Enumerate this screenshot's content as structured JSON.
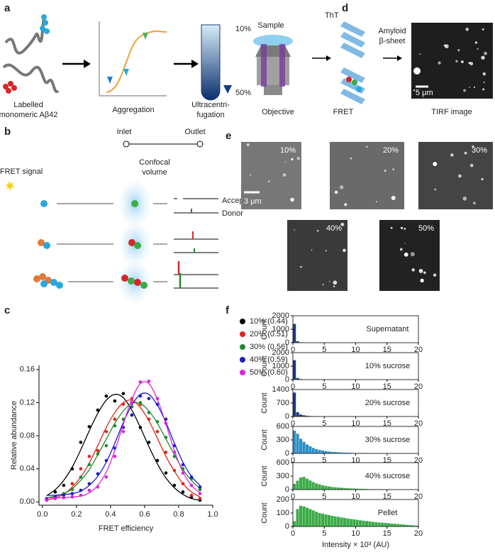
{
  "panel_labels": [
    "a",
    "b",
    "c",
    "d",
    "e",
    "f"
  ],
  "panel_a": {
    "monomer_label": [
      "Labelled",
      "monomeric Aβ42"
    ],
    "aggregation_label": "Aggregation",
    "centrifugation_label": [
      "Ultracentri-",
      "fugation"
    ],
    "gradient_top": "10%",
    "gradient_bottom": "50%"
  },
  "panel_b": {
    "inlet": "Inlet",
    "outlet": "Outlet",
    "fret_signal": "FRET signal",
    "confocal": [
      "Confocal",
      "volume"
    ],
    "acceptor": "Acceptor",
    "donor": "Donor"
  },
  "panel_d": {
    "sample": "Sample",
    "tht": "ThT",
    "amyloid": [
      "Amyloid",
      "β-sheet"
    ],
    "objective": "Objective",
    "fret": "FRET",
    "tirf": "TIRF image",
    "scale": "5 μm"
  },
  "panel_e": {
    "images": [
      "10%",
      "20%",
      "30%",
      "40%",
      "50%"
    ],
    "scale": "3 μm"
  },
  "chart_data": [
    {
      "type": "scatter",
      "xlabel": "FRET efficiency",
      "ylabel": "Relative abundance",
      "legend": "right",
      "xlim": [
        -0.02,
        1.0
      ],
      "ylim": [
        -0.004,
        0.165
      ],
      "xticks": [
        {
          "value": 0,
          "label": "0.0"
        },
        0.2,
        0.4,
        0.6,
        0.8,
        {
          "value": 1,
          "label": "1.0"
        }
      ],
      "yticks": [
        {
          "value": 0,
          "label": "0.00"
        },
        0.04,
        0.08,
        0.12,
        0.16
      ],
      "x": [
        0.025,
        0.075,
        0.125,
        0.175,
        0.225,
        0.275,
        0.325,
        0.375,
        0.425,
        0.475,
        0.525,
        0.575,
        0.625,
        0.675,
        0.725,
        0.775,
        0.825,
        0.875,
        0.925
      ],
      "series": [
        {
          "name": "10% (0.44)",
          "color": "#000000",
          "values": [
            0.004,
            0.012,
            0.02,
            0.04,
            0.072,
            0.091,
            0.111,
            0.128,
            0.122,
            0.131,
            0.105,
            0.09,
            0.072,
            0.05,
            0.035,
            0.02,
            0.012,
            0.006,
            0.002
          ],
          "fit": [
            0.0076,
            0.0147,
            0.026,
            0.042,
            0.063,
            0.086,
            0.107,
            0.123,
            0.13,
            0.126,
            0.111,
            0.09,
            0.067,
            0.046,
            0.029,
            0.017,
            0.009,
            0.004,
            0.002
          ]
        },
        {
          "name": "20% (0.51)",
          "color": "#e2231a",
          "values": [
            0.002,
            0.004,
            0.009,
            0.022,
            0.04,
            0.055,
            0.062,
            0.085,
            0.1,
            0.118,
            0.125,
            0.118,
            0.1,
            0.085,
            0.06,
            0.038,
            0.022,
            0.008,
            0.004
          ],
          "fit": [
            0.002,
            0.005,
            0.009,
            0.018,
            0.03,
            0.047,
            0.068,
            0.09,
            0.108,
            0.12,
            0.123,
            0.114,
            0.098,
            0.077,
            0.055,
            0.037,
            0.022,
            0.012,
            0.006
          ]
        },
        {
          "name": "30% (0.56)",
          "color": "#1f8a2b",
          "values": [
            0.003,
            0.004,
            0.01,
            0.015,
            0.03,
            0.045,
            0.058,
            0.068,
            0.092,
            0.1,
            0.115,
            0.12,
            0.108,
            0.097,
            0.078,
            0.055,
            0.04,
            0.028,
            0.015
          ],
          "fit": [
            0.005,
            0.007,
            0.01,
            0.016,
            0.026,
            0.039,
            0.057,
            0.076,
            0.095,
            0.11,
            0.119,
            0.119,
            0.11,
            0.095,
            0.076,
            0.057,
            0.039,
            0.026,
            0.016
          ]
        },
        {
          "name": "40% (0.59)",
          "color": "#1c1cc8",
          "values": [
            0.004,
            0.006,
            0.008,
            0.01,
            0.014,
            0.022,
            0.034,
            0.05,
            0.065,
            0.09,
            0.105,
            0.128,
            0.125,
            0.118,
            0.1,
            0.068,
            0.045,
            0.03,
            0.018
          ],
          "fit": [
            0.008,
            0.008,
            0.009,
            0.01,
            0.013,
            0.02,
            0.031,
            0.048,
            0.071,
            0.096,
            0.117,
            0.13,
            0.13,
            0.117,
            0.096,
            0.071,
            0.048,
            0.031,
            0.02
          ]
        },
        {
          "name": "50% (0.60)",
          "color": "#e021e0",
          "values": [
            0.002,
            0.004,
            0.005,
            0.006,
            0.008,
            0.014,
            0.018,
            0.03,
            0.055,
            0.085,
            0.12,
            0.145,
            0.146,
            0.125,
            0.095,
            0.06,
            0.035,
            0.02,
            0.01
          ],
          "fit": [
            0.005,
            0.005,
            0.005,
            0.006,
            0.007,
            0.011,
            0.02,
            0.036,
            0.062,
            0.094,
            0.124,
            0.143,
            0.143,
            0.124,
            0.094,
            0.062,
            0.036,
            0.02,
            0.011
          ]
        }
      ]
    },
    {
      "type": "histogram",
      "label": "Supernatant",
      "ylabel": "Count",
      "color": "#1b3a7c",
      "bins": [
        0,
        0.5,
        1,
        1.5,
        2,
        2.5,
        3,
        3.5,
        4,
        4.5,
        5,
        5.5,
        6,
        6.5,
        7,
        7.5,
        8,
        8.5,
        9,
        9.5,
        10,
        10.5,
        11,
        11.5,
        12,
        12.5,
        13,
        13.5,
        14,
        14.5,
        15,
        15.5,
        16,
        16.5,
        17,
        17.5,
        18,
        18.5,
        19,
        19.5,
        20
      ],
      "values": [
        1400,
        120,
        40,
        20,
        10,
        8,
        5,
        4,
        3,
        2,
        2,
        1,
        1,
        1,
        0,
        0,
        0,
        0,
        0,
        0,
        0,
        0,
        0,
        0,
        0,
        0,
        0,
        0,
        0,
        0,
        0,
        0,
        0,
        0,
        0,
        0,
        0,
        0,
        0,
        0
      ],
      "xlim": [
        0,
        20
      ],
      "ylim": [
        0,
        2000
      ],
      "xticks": [
        0,
        5,
        10,
        15,
        20
      ],
      "yticks": [
        0,
        1000,
        2000
      ]
    },
    {
      "type": "histogram",
      "label": "10% sucrose",
      "ylabel": "Count",
      "color": "#1b3a7c",
      "bins": [
        0,
        0.5,
        1,
        1.5,
        2,
        2.5,
        3,
        3.5,
        4,
        4.5,
        5,
        5.5,
        6,
        6.5,
        7,
        7.5,
        8,
        8.5,
        9,
        9.5,
        10,
        10.5,
        11,
        11.5,
        12,
        12.5,
        13,
        13.5,
        14,
        14.5,
        15,
        15.5,
        16,
        16.5,
        17,
        17.5,
        18,
        18.5,
        19,
        19.5,
        20
      ],
      "values": [
        1450,
        130,
        50,
        25,
        15,
        10,
        6,
        4,
        3,
        2,
        1,
        1,
        1,
        0,
        0,
        0,
        0,
        0,
        0,
        0,
        0,
        0,
        0,
        0,
        0,
        0,
        0,
        0,
        0,
        0,
        0,
        0,
        0,
        0,
        0,
        0,
        0,
        0,
        0,
        0
      ],
      "xlim": [
        0,
        20
      ],
      "ylim": [
        0,
        2000
      ],
      "xticks": [
        0,
        5,
        10,
        15,
        20
      ],
      "yticks": [
        0,
        1000,
        2000
      ]
    },
    {
      "type": "histogram",
      "label": "20% sucrose",
      "ylabel": "Count",
      "color": "#1b3a7c",
      "bins": [
        0,
        0.5,
        1,
        1.5,
        2,
        2.5,
        3,
        3.5,
        4,
        4.5,
        5,
        5.5,
        6,
        6.5,
        7,
        7.5,
        8,
        8.5,
        9,
        9.5,
        10,
        10.5,
        11,
        11.5,
        12,
        12.5,
        13,
        13.5,
        14,
        14.5,
        15,
        15.5,
        16,
        16.5,
        17,
        17.5,
        18,
        18.5,
        19,
        19.5,
        20
      ],
      "values": [
        1250,
        230,
        110,
        70,
        45,
        30,
        22,
        16,
        12,
        10,
        8,
        6,
        5,
        4,
        3,
        3,
        2,
        2,
        1,
        1,
        1,
        1,
        0,
        0,
        0,
        0,
        0,
        0,
        0,
        0,
        0,
        0,
        0,
        0,
        0,
        0,
        0,
        0,
        0,
        0
      ],
      "xlim": [
        0,
        20
      ],
      "ylim": [
        0,
        1400
      ],
      "xticks": [
        0,
        5,
        10,
        15,
        20
      ],
      "yticks": [
        0,
        700,
        1400
      ]
    },
    {
      "type": "histogram",
      "label": "30% sucrose",
      "ylabel": "Count",
      "color": "#2b8fc9",
      "bins": [
        0,
        0.5,
        1,
        1.5,
        2,
        2.5,
        3,
        3.5,
        4,
        4.5,
        5,
        5.5,
        6,
        6.5,
        7,
        7.5,
        8,
        8.5,
        9,
        9.5,
        10,
        10.5,
        11,
        11.5,
        12,
        12.5,
        13,
        13.5,
        14,
        14.5,
        15,
        15.5,
        16,
        16.5,
        17,
        17.5,
        18,
        18.5,
        19,
        19.5,
        20
      ],
      "values": [
        510,
        440,
        330,
        260,
        200,
        160,
        125,
        100,
        80,
        65,
        55,
        45,
        38,
        32,
        27,
        23,
        20,
        17,
        15,
        13,
        11,
        10,
        9,
        8,
        7,
        6,
        5,
        5,
        4,
        4,
        3,
        3,
        3,
        2,
        2,
        2,
        2,
        1,
        1,
        1
      ],
      "xlim": [
        0,
        20
      ],
      "ylim": [
        0,
        600
      ],
      "xticks": [
        0,
        5,
        10,
        15,
        20
      ],
      "yticks": [
        0,
        300,
        600
      ]
    },
    {
      "type": "histogram",
      "label": "40% sucrose",
      "ylabel": "Count",
      "color": "#3aab47",
      "bins": [
        0,
        0.5,
        1,
        1.5,
        2,
        2.5,
        3,
        3.5,
        4,
        4.5,
        5,
        5.5,
        6,
        6.5,
        7,
        7.5,
        8,
        8.5,
        9,
        9.5,
        10,
        10.5,
        11,
        11.5,
        12,
        12.5,
        13,
        13.5,
        14,
        14.5,
        15,
        15.5,
        16,
        16.5,
        17,
        17.5,
        18,
        18.5,
        19,
        19.5,
        20
      ],
      "values": [
        130,
        200,
        270,
        285,
        245,
        205,
        170,
        140,
        120,
        100,
        85,
        72,
        62,
        55,
        48,
        42,
        37,
        33,
        29,
        26,
        23,
        20,
        18,
        16,
        14,
        12,
        11,
        10,
        9,
        8,
        7,
        6,
        5,
        5,
        4,
        4,
        3,
        3,
        2,
        2
      ],
      "xlim": [
        0,
        20
      ],
      "ylim": [
        0,
        600
      ],
      "xticks": [
        0,
        5,
        10,
        15,
        20
      ],
      "yticks": [
        0,
        300,
        600
      ]
    },
    {
      "type": "histogram",
      "label": "Pellet",
      "ylabel": "Count",
      "xlabel": "Intensity × 10³ (AU)",
      "color": "#3aab47",
      "bins": [
        0,
        0.5,
        1,
        1.5,
        2,
        2.5,
        3,
        3.5,
        4,
        4.5,
        5,
        5.5,
        6,
        6.5,
        7,
        7.5,
        8,
        8.5,
        9,
        9.5,
        10,
        10.5,
        11,
        11.5,
        12,
        12.5,
        13,
        13.5,
        14,
        14.5,
        15,
        15.5,
        16,
        16.5,
        17,
        17.5,
        18,
        18.5,
        19,
        19.5,
        20
      ],
      "values": [
        40,
        130,
        155,
        150,
        140,
        130,
        120,
        110,
        100,
        95,
        90,
        85,
        80,
        76,
        72,
        68,
        64,
        60,
        57,
        54,
        50,
        47,
        44,
        41,
        38,
        35,
        33,
        31,
        29,
        27,
        25,
        23,
        21,
        19,
        17,
        15,
        13,
        11,
        9,
        7
      ],
      "xlim": [
        0,
        20
      ],
      "ylim": [
        0,
        200
      ],
      "xticks": [
        0,
        5,
        10,
        15,
        20
      ],
      "yticks": [
        0,
        100,
        200
      ]
    }
  ]
}
